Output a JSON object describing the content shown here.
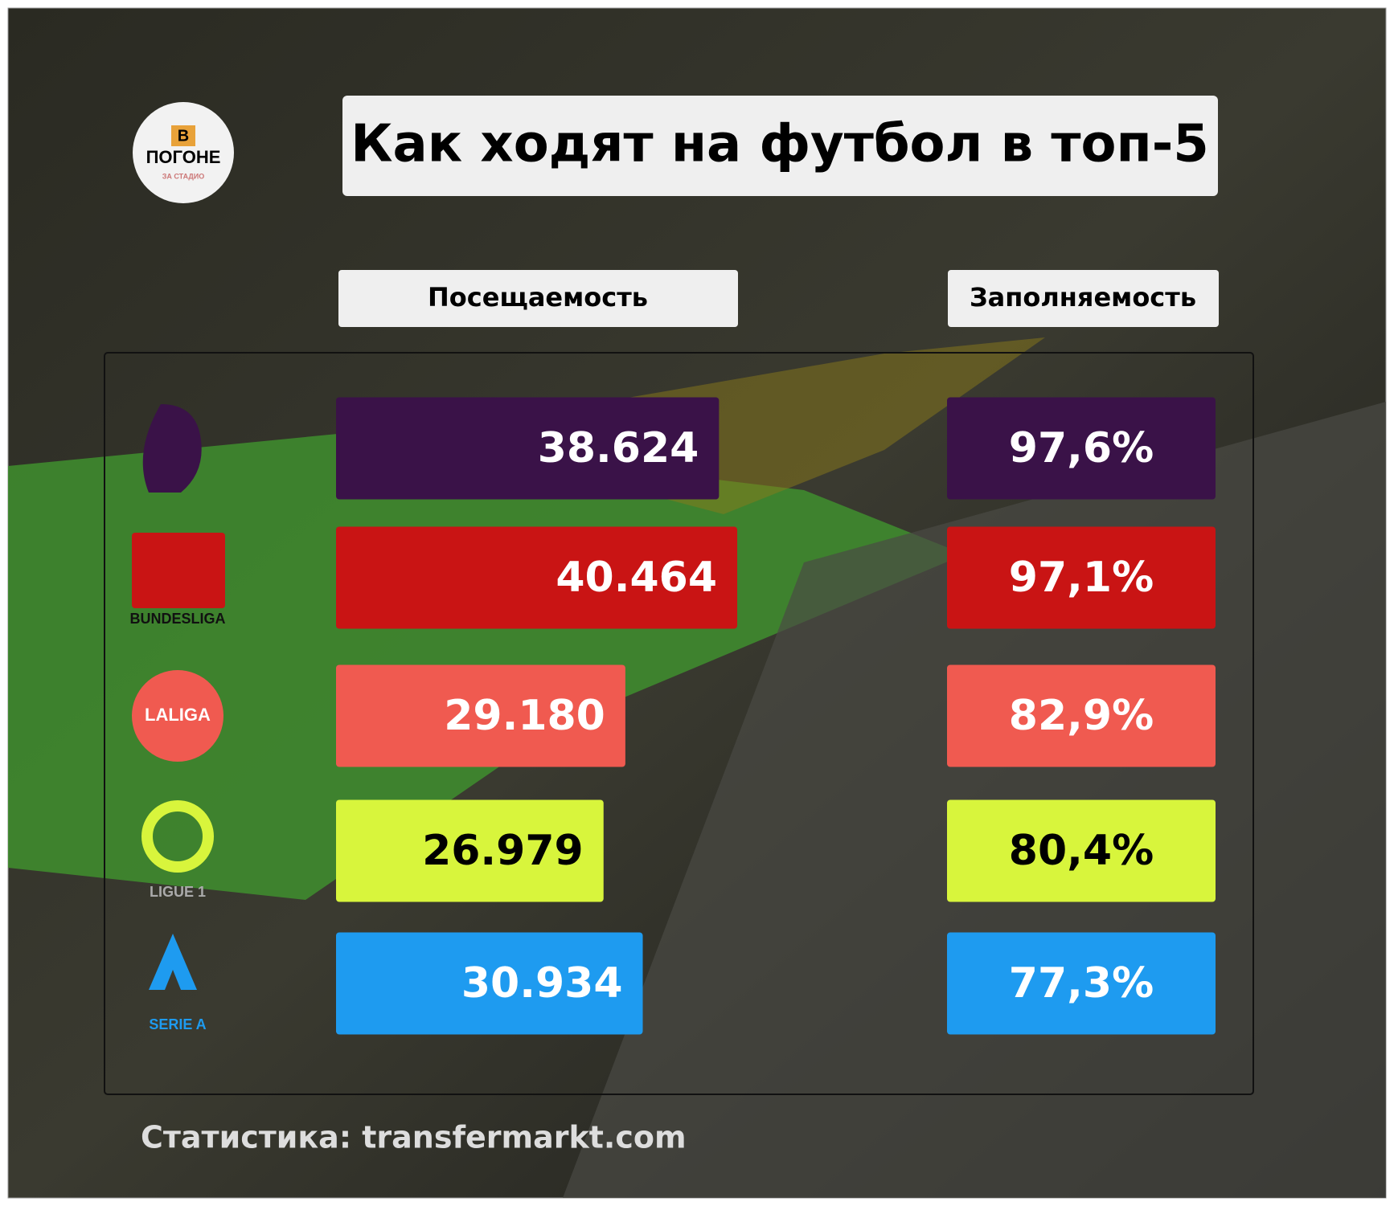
{
  "logo": {
    "letter": "В",
    "text": "ПОГОНЕ",
    "sub": "ЗА СТАДИО"
  },
  "chart_data": {
    "type": "bar",
    "title": "Как ходят на футбол в топ-5",
    "categories": [
      null,
      "BUNDESLIGA",
      "LALIGA",
      "LIGUE 1",
      "SERIE A"
    ],
    "colors": [
      "#3a1248",
      "#c91414",
      "#f05a50",
      "#d8f53c",
      "#1e9bf0"
    ],
    "text_colors": [
      "#ffffff",
      "#ffffff",
      "#ffffff",
      "#000000",
      "#ffffff"
    ],
    "xlim": [
      0,
      42000
    ],
    "series": [
      {
        "name": "Посещаемость",
        "values": [
          38624,
          40464,
          29180,
          26979,
          30934
        ],
        "value_labels": [
          "38.624",
          "40.464",
          "29.180",
          "26.979",
          "30.934"
        ]
      },
      {
        "name": "Заполняемость",
        "values": [
          97.6,
          97.1,
          82.9,
          80.4,
          77.3
        ],
        "value_labels": [
          "97,6%",
          "97,1%",
          "82,9%",
          "80,4%",
          "77,3%"
        ]
      }
    ],
    "source": "Статистика: transfermarkt.com"
  }
}
